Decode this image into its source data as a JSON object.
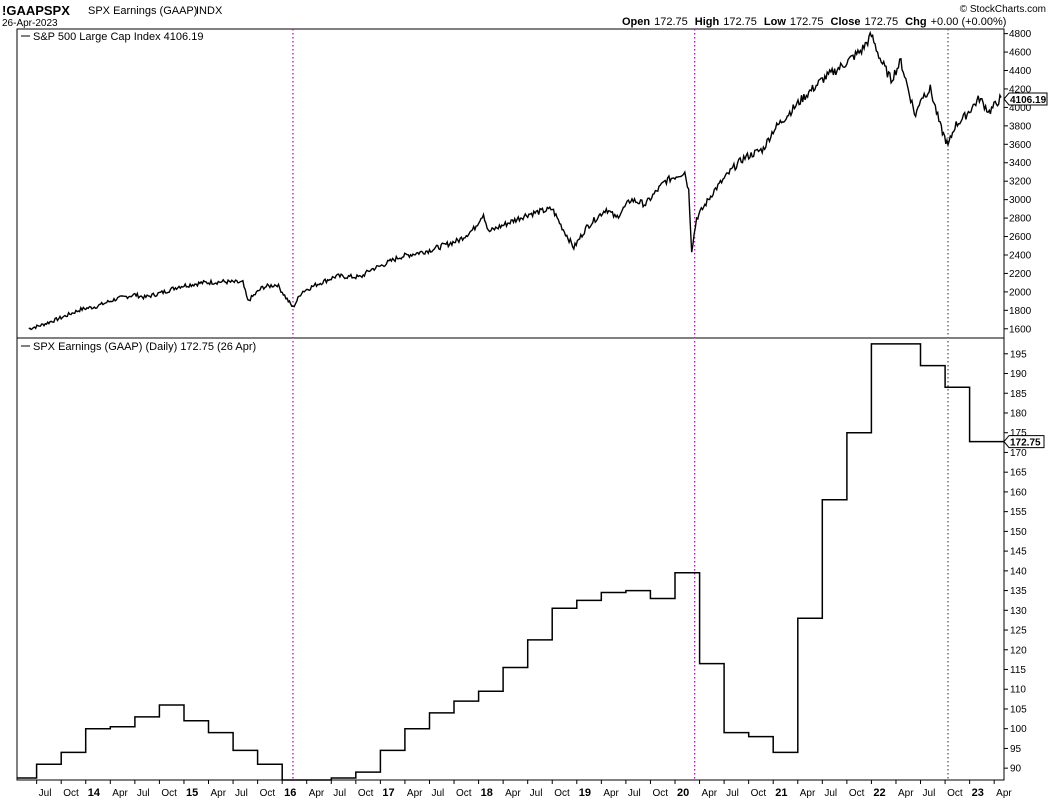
{
  "header": {
    "symbol": "!GAAPSPX",
    "name": "SPX Earnings (GAAP)",
    "exchange": "INDX",
    "date": "26-Apr-2023",
    "copyright": "© StockCharts.com",
    "ohlc": [
      {
        "label": "Open",
        "value": "172.75"
      },
      {
        "label": "High",
        "value": "172.75"
      },
      {
        "label": "Low",
        "value": "172.75"
      },
      {
        "label": "Close",
        "value": "172.75"
      },
      {
        "label": "Chg",
        "value": "+0.00 (+0.00%)"
      }
    ]
  },
  "chart_data": [
    {
      "type": "line",
      "panel": "top",
      "title": "S&P 500 Large Cap Index 4106.19",
      "last_value_label": "4106.19",
      "ylim": [
        1500,
        4850
      ],
      "yticks": [
        1600,
        1800,
        2000,
        2200,
        2400,
        2600,
        2800,
        3000,
        3200,
        3400,
        3600,
        3800,
        4000,
        4200,
        4400,
        4600,
        4800
      ],
      "x": [
        2013.42,
        2013.55,
        2013.75,
        2013.95,
        2014.1,
        2014.3,
        2014.5,
        2014.6,
        2014.8,
        2014.95,
        2015.2,
        2015.4,
        2015.6,
        2015.65,
        2015.8,
        2015.95,
        2016.05,
        2016.11,
        2016.2,
        2016.35,
        2016.55,
        2016.8,
        2016.9,
        2017.0,
        2017.2,
        2017.5,
        2017.8,
        2017.95,
        2018.05,
        2018.1,
        2018.2,
        2018.5,
        2018.75,
        2018.85,
        2018.97,
        2019.1,
        2019.3,
        2019.4,
        2019.55,
        2019.7,
        2019.9,
        2020.1,
        2020.14,
        2020.17,
        2020.22,
        2020.4,
        2020.6,
        2020.7,
        2020.9,
        2021.0,
        2021.3,
        2021.5,
        2021.7,
        2021.9,
        2022.0,
        2022.1,
        2022.2,
        2022.3,
        2022.45,
        2022.5,
        2022.6,
        2022.7,
        2022.78,
        2022.85,
        2022.95,
        2023.1,
        2023.2,
        2023.32
      ],
      "y": [
        1600,
        1640,
        1720,
        1810,
        1840,
        1920,
        1970,
        1940,
        2000,
        2060,
        2100,
        2110,
        2100,
        1900,
        2050,
        2080,
        1920,
        1830,
        2000,
        2080,
        2170,
        2160,
        2240,
        2280,
        2380,
        2450,
        2560,
        2680,
        2850,
        2650,
        2700,
        2840,
        2900,
        2700,
        2480,
        2700,
        2900,
        2800,
        3000,
        2950,
        3200,
        3300,
        3100,
        2450,
        2800,
        3100,
        3350,
        3450,
        3550,
        3750,
        4100,
        4300,
        4450,
        4620,
        4780,
        4500,
        4300,
        4500,
        3900,
        4100,
        4200,
        3800,
        3580,
        3800,
        3900,
        4100,
        3950,
        4106
      ]
    },
    {
      "type": "line",
      "panel": "bottom",
      "title": "SPX Earnings (GAAP) (Daily) 172.75 (26 Apr)",
      "last_value_label": "172.75",
      "ylim": [
        87,
        199
      ],
      "yticks": [
        90,
        95,
        100,
        105,
        110,
        115,
        120,
        125,
        130,
        135,
        140,
        145,
        150,
        155,
        160,
        165,
        170,
        175,
        180,
        185,
        190,
        195
      ],
      "x": [
        2013.3,
        2013.5,
        2013.75,
        2014.0,
        2014.25,
        2014.5,
        2014.75,
        2015.0,
        2015.25,
        2015.5,
        2015.75,
        2016.0,
        2016.25,
        2016.5,
        2016.75,
        2017.0,
        2017.25,
        2017.5,
        2017.75,
        2018.0,
        2018.25,
        2018.5,
        2018.75,
        2019.0,
        2019.25,
        2019.5,
        2019.75,
        2020.0,
        2020.25,
        2020.5,
        2020.75,
        2021.0,
        2021.25,
        2021.5,
        2021.75,
        2022.0,
        2022.25,
        2022.5,
        2022.75,
        2023.0,
        2023.35
      ],
      "y": [
        87.5,
        91,
        94,
        100,
        100.5,
        103,
        106,
        102,
        99,
        94.5,
        91,
        87,
        87,
        87.5,
        89,
        94.5,
        100,
        104,
        107,
        109.5,
        115.5,
        122.5,
        130.5,
        132.5,
        134.5,
        135,
        133,
        139.5,
        116.5,
        99,
        98,
        94,
        128,
        158,
        175,
        197.5,
        197.5,
        192,
        186.5,
        172.75,
        172.75
      ]
    }
  ],
  "x_axis": {
    "labels": [
      {
        "x": 2013.5,
        "label": "Jul"
      },
      {
        "x": 2013.75,
        "label": "Oct"
      },
      {
        "x": 2014.0,
        "label": "14"
      },
      {
        "x": 2014.25,
        "label": "Apr"
      },
      {
        "x": 2014.5,
        "label": "Jul"
      },
      {
        "x": 2014.75,
        "label": "Oct"
      },
      {
        "x": 2015.0,
        "label": "15"
      },
      {
        "x": 2015.25,
        "label": "Apr"
      },
      {
        "x": 2015.5,
        "label": "Jul"
      },
      {
        "x": 2015.75,
        "label": "Oct"
      },
      {
        "x": 2016.0,
        "label": "16"
      },
      {
        "x": 2016.25,
        "label": "Apr"
      },
      {
        "x": 2016.5,
        "label": "Jul"
      },
      {
        "x": 2016.75,
        "label": "Oct"
      },
      {
        "x": 2017.0,
        "label": "17"
      },
      {
        "x": 2017.25,
        "label": "Apr"
      },
      {
        "x": 2017.5,
        "label": "Jul"
      },
      {
        "x": 2017.75,
        "label": "Oct"
      },
      {
        "x": 2018.0,
        "label": "18"
      },
      {
        "x": 2018.25,
        "label": "Apr"
      },
      {
        "x": 2018.5,
        "label": "Jul"
      },
      {
        "x": 2018.75,
        "label": "Oct"
      },
      {
        "x": 2019.0,
        "label": "19"
      },
      {
        "x": 2019.25,
        "label": "Apr"
      },
      {
        "x": 2019.5,
        "label": "Jul"
      },
      {
        "x": 2019.75,
        "label": "Oct"
      },
      {
        "x": 2020.0,
        "label": "20"
      },
      {
        "x": 2020.25,
        "label": "Apr"
      },
      {
        "x": 2020.5,
        "label": "Jul"
      },
      {
        "x": 2020.75,
        "label": "Oct"
      },
      {
        "x": 2021.0,
        "label": "21"
      },
      {
        "x": 2021.25,
        "label": "Apr"
      },
      {
        "x": 2021.5,
        "label": "Jul"
      },
      {
        "x": 2021.75,
        "label": "Oct"
      },
      {
        "x": 2022.0,
        "label": "22"
      },
      {
        "x": 2022.25,
        "label": "Apr"
      },
      {
        "x": 2022.5,
        "label": "Jul"
      },
      {
        "x": 2022.75,
        "label": "Oct"
      },
      {
        "x": 2023.0,
        "label": "23"
      },
      {
        "x": 2023.25,
        "label": "Apr"
      }
    ],
    "year_labels": [
      "14",
      "15",
      "16",
      "17",
      "18",
      "19",
      "20",
      "21",
      "22",
      "23"
    ]
  },
  "markers": [
    {
      "x": 2016.11,
      "color": "#cc00cc",
      "style": "dotted"
    },
    {
      "x": 2020.2,
      "color": "#cc00cc",
      "style": "dotted"
    },
    {
      "x": 2022.78,
      "color": "#555555",
      "style": "dotted"
    }
  ]
}
